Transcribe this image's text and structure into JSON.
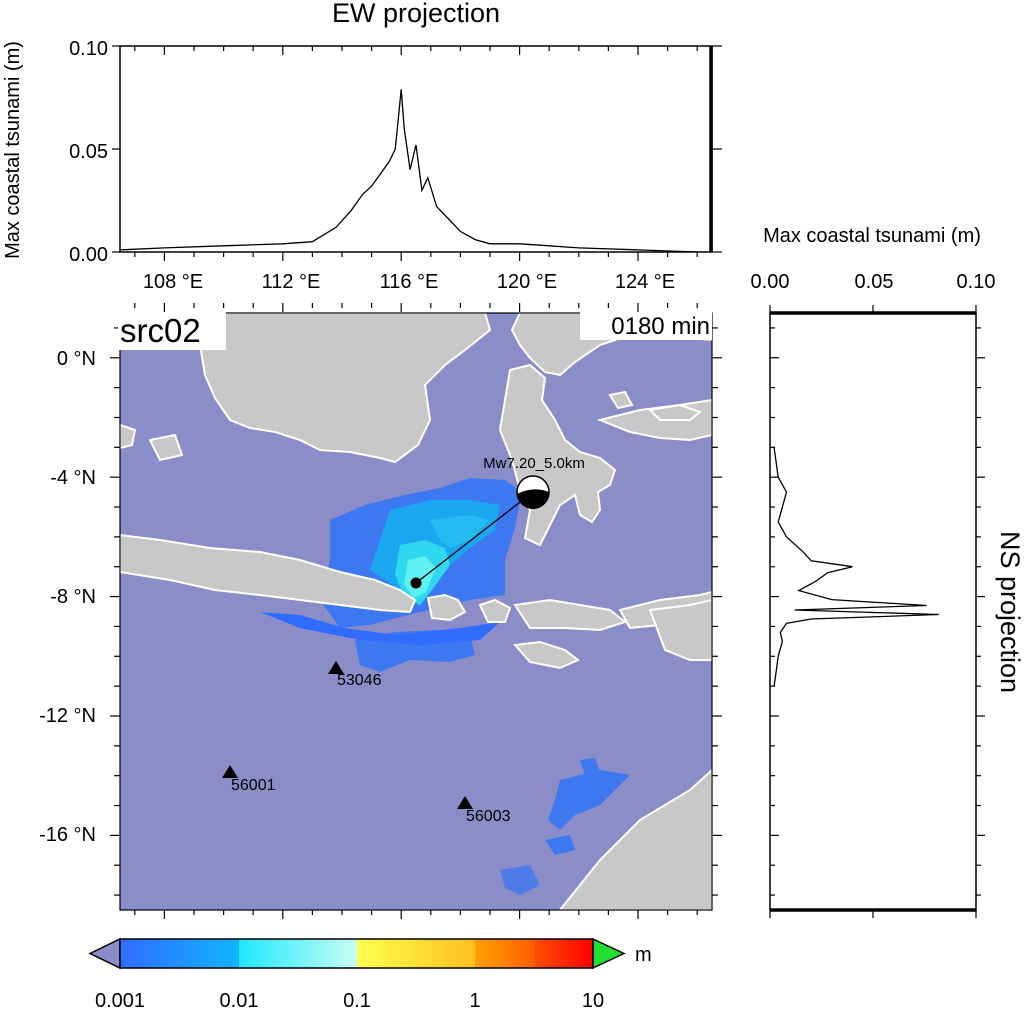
{
  "ew_panel": {
    "title": "EW projection",
    "ylabel": "Max coastal tsunami (m)",
    "yticks": [
      "0.00",
      "0.05",
      "0.10"
    ],
    "xticks": [
      "108 °E",
      "112 °E",
      "116 °E",
      "120 °E",
      "124 °E"
    ]
  },
  "ns_panel": {
    "title": "NS projection",
    "xlabel": "Max coastal tsunami (m)",
    "xticks": [
      "0.00",
      "0.05",
      "0.10"
    ]
  },
  "map": {
    "source_label": "src02",
    "time_label": "0180 min",
    "lat_ticks": [
      "0 °N",
      "-4 °N",
      "-8 °N",
      "-12 °N",
      "-16 °N"
    ],
    "event_label": "Mw7.20_5.0km",
    "stations": [
      {
        "id": "53046"
      },
      {
        "id": "56001"
      },
      {
        "id": "56003"
      }
    ],
    "colors": {
      "ocean": "#8a8dc7",
      "land": "#c8c8c8",
      "coast": "#ffffff",
      "wave_low": "#3d78f0",
      "wave_mid": "#1ba6f0",
      "wave_high": "#5ff0f2"
    }
  },
  "colorbar": {
    "unit": "m",
    "tick_labels": [
      "0.001",
      "0.01",
      "0.1",
      "1",
      "10"
    ],
    "colors": [
      "#2f6cff",
      "#00c8ff",
      "#ffff50",
      "#ffa000",
      "#ff2000"
    ],
    "under_color": "#8a8dc7",
    "over_color": "#22dd33"
  },
  "chart_data": [
    {
      "type": "line",
      "title": "EW projection",
      "xlabel": "",
      "ylabel": "Max coastal tsunami (m)",
      "xlim": [
        106.5,
        126.5
      ],
      "ylim": [
        0,
        0.1
      ],
      "x": [
        106.5,
        108,
        110,
        112,
        113,
        113.8,
        114.3,
        114.7,
        115,
        115.3,
        115.6,
        115.8,
        116.0,
        116.1,
        116.3,
        116.5,
        116.7,
        116.9,
        117.2,
        117.6,
        118,
        118.5,
        119,
        120,
        121,
        122,
        124,
        126
      ],
      "values": [
        0.001,
        0.002,
        0.003,
        0.004,
        0.005,
        0.012,
        0.02,
        0.028,
        0.032,
        0.038,
        0.044,
        0.05,
        0.079,
        0.06,
        0.04,
        0.052,
        0.03,
        0.036,
        0.022,
        0.016,
        0.01,
        0.006,
        0.004,
        0.004,
        0.003,
        0.002,
        0.001,
        0.0
      ]
    },
    {
      "type": "line",
      "title": "NS projection",
      "xlabel": "Max coastal tsunami (m)",
      "ylabel": "",
      "xlim": [
        0,
        0.1
      ],
      "ylim": [
        -18.5,
        1.5
      ],
      "y": [
        -3,
        -4,
        -4.5,
        -5,
        -5.5,
        -6,
        -6.5,
        -6.8,
        -7.0,
        -7.2,
        -7.5,
        -7.8,
        -8.1,
        -8.3,
        -8.45,
        -8.6,
        -8.75,
        -8.9,
        -9.2,
        -9.5,
        -10,
        -10.5,
        -11
      ],
      "values": [
        0.002,
        0.004,
        0.008,
        0.006,
        0.004,
        0.008,
        0.016,
        0.02,
        0.04,
        0.028,
        0.022,
        0.014,
        0.03,
        0.076,
        0.012,
        0.082,
        0.02,
        0.008,
        0.005,
        0.006,
        0.004,
        0.003,
        0.002
      ]
    }
  ]
}
